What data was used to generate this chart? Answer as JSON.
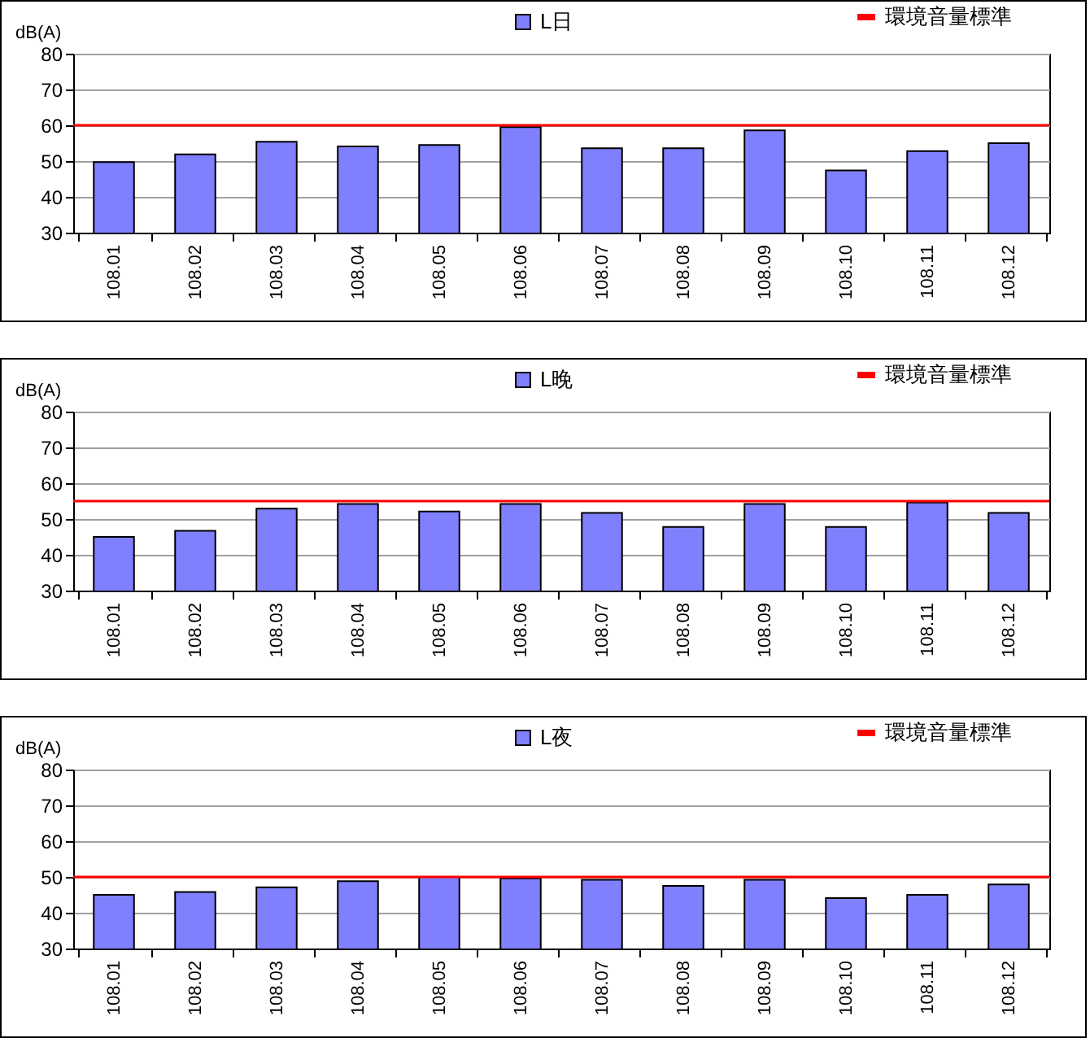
{
  "chart_data": [
    {
      "type": "bar",
      "ylabel": "dB(A)",
      "categories": [
        "108.01",
        "108.02",
        "108.03",
        "108.04",
        "108.05",
        "108.06",
        "108.07",
        "108.08",
        "108.09",
        "108.10",
        "108.11",
        "108.12"
      ],
      "series": [
        {
          "name": "L日",
          "color": "#8080ff",
          "values": [
            49.7,
            51.9,
            55.4,
            54.1,
            54.5,
            59.5,
            53.6,
            53.6,
            58.6,
            47.4,
            52.8,
            55.0
          ]
        }
      ],
      "ylim": [
        30,
        80
      ],
      "yticks": [
        30,
        40,
        50,
        60,
        70,
        80
      ],
      "grid": "y",
      "legend": "top",
      "ref_lines": [
        {
          "axis": "y",
          "value": 60,
          "label": "環境音量標準",
          "color": "#ff0000"
        }
      ]
    },
    {
      "type": "bar",
      "ylabel": "dB(A)",
      "categories": [
        "108.01",
        "108.02",
        "108.03",
        "108.04",
        "108.05",
        "108.06",
        "108.07",
        "108.08",
        "108.09",
        "108.10",
        "108.11",
        "108.12"
      ],
      "series": [
        {
          "name": "L晚",
          "color": "#8080ff",
          "values": [
            45.0,
            46.7,
            52.9,
            54.2,
            52.1,
            54.2,
            51.7,
            47.8,
            54.2,
            47.8,
            54.6,
            51.7
          ]
        }
      ],
      "ylim": [
        30,
        80
      ],
      "yticks": [
        30,
        40,
        50,
        60,
        70,
        80
      ],
      "grid": "y",
      "legend": "top",
      "ref_lines": [
        {
          "axis": "y",
          "value": 55,
          "label": "環境音量標準",
          "color": "#ff0000"
        }
      ]
    },
    {
      "type": "bar",
      "ylabel": "dB(A)",
      "categories": [
        "108.01",
        "108.02",
        "108.03",
        "108.04",
        "108.05",
        "108.06",
        "108.07",
        "108.08",
        "108.09",
        "108.10",
        "108.11",
        "108.12"
      ],
      "series": [
        {
          "name": "L夜",
          "color": "#8080ff",
          "values": [
            45.0,
            45.8,
            47.1,
            48.8,
            50.0,
            49.6,
            49.2,
            47.5,
            49.2,
            44.1,
            45.0,
            47.9
          ]
        }
      ],
      "ylim": [
        30,
        80
      ],
      "yticks": [
        30,
        40,
        50,
        60,
        70,
        80
      ],
      "grid": "y",
      "legend": "top",
      "ref_lines": [
        {
          "axis": "y",
          "value": 50,
          "label": "環境音量標準",
          "color": "#ff0000"
        }
      ]
    }
  ]
}
